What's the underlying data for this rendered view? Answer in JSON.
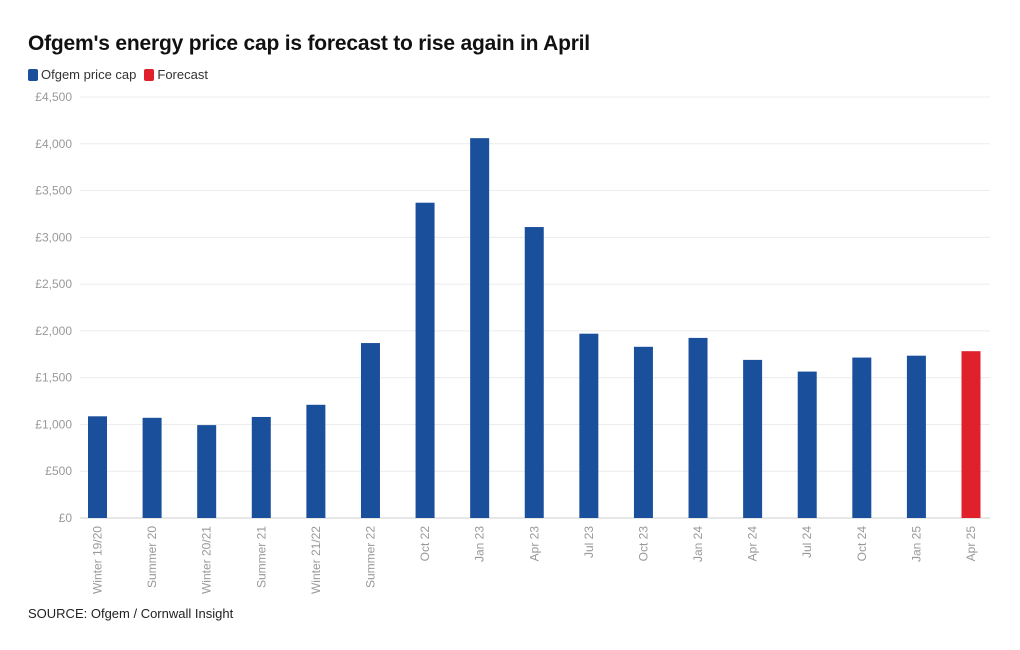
{
  "title": "Ofgem's energy price cap is forecast to rise again in April",
  "legend": [
    {
      "label": "Ofgem price cap",
      "color": "#1a4f9c"
    },
    {
      "label": "Forecast",
      "color": "#e0202a"
    }
  ],
  "source": "SOURCE: Ofgem / Cornwall Insight",
  "chart_data": {
    "type": "bar",
    "categories": [
      "Winter 19/20",
      "Summer 20",
      "Winter 20/21",
      "Summer 21",
      "Winter 21/22",
      "Summer 22",
      "Oct 22",
      "Jan 23",
      "Apr 23",
      "Jul 23",
      "Oct 23",
      "Jan 24",
      "Apr 24",
      "Jul 24",
      "Oct 24",
      "Jan 25",
      "Apr 25"
    ],
    "series": [
      {
        "name": "Ofgem price cap",
        "color": "#1a4f9c",
        "values": [
          1087,
          1071,
          993,
          1080,
          1210,
          1870,
          3370,
          4060,
          3110,
          1970,
          1830,
          1925,
          1690,
          1565,
          1715,
          1735,
          null
        ]
      },
      {
        "name": "Forecast",
        "color": "#e0202a",
        "values": [
          null,
          null,
          null,
          null,
          null,
          null,
          null,
          null,
          null,
          null,
          null,
          null,
          null,
          null,
          null,
          null,
          1783
        ]
      }
    ],
    "ylim": [
      0,
      4500
    ],
    "yticks": [
      0,
      500,
      1000,
      1500,
      2000,
      2500,
      3000,
      3500,
      4000,
      4500
    ],
    "ytick_labels": [
      "£0",
      "£500",
      "£1,000",
      "£1,500",
      "£2,000",
      "£2,500",
      "£3,000",
      "£3,500",
      "£4,000",
      "£4,500"
    ],
    "xlabel": "",
    "ylabel": "",
    "grid": true,
    "legend_position": "top-left"
  }
}
